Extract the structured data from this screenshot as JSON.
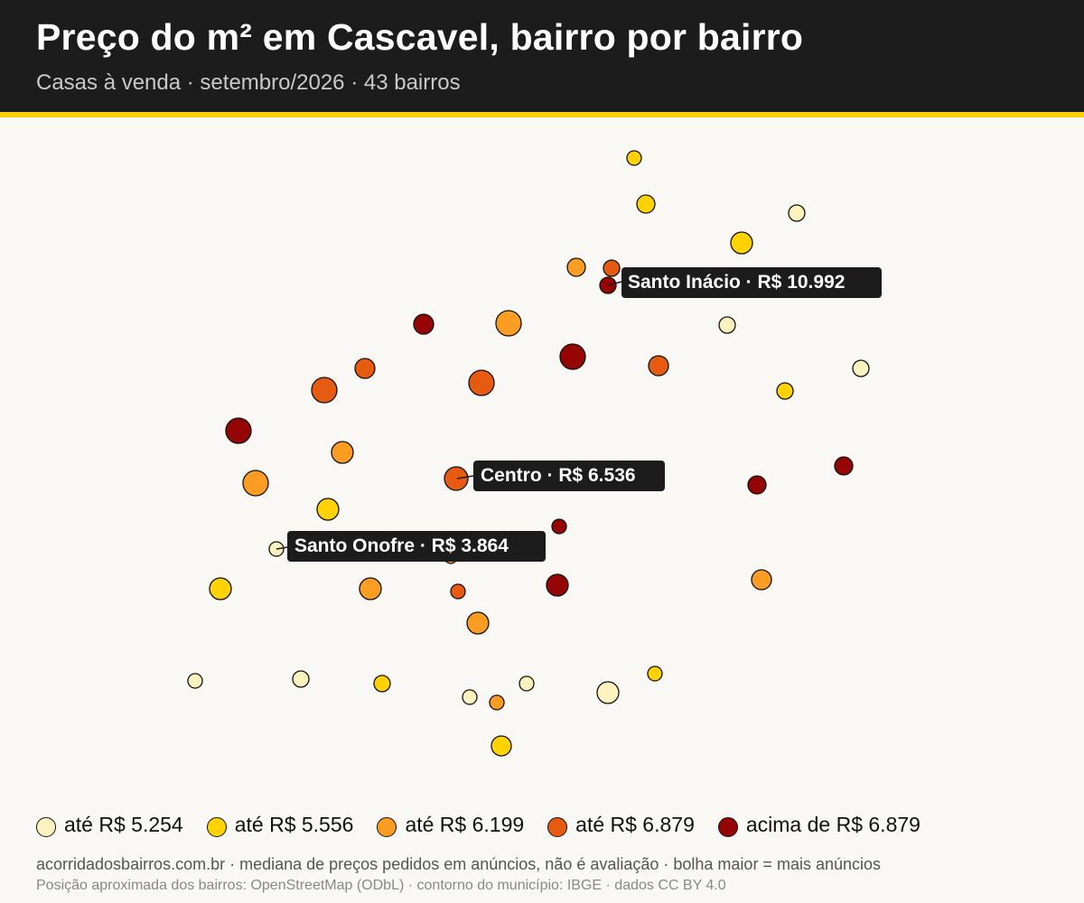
{
  "header": {
    "title": "Preço do m² em Cascavel, bairro por bairro",
    "subtitle": "Casas à venda · setembro/2026 · 43 bairros"
  },
  "colors": {
    "class1": "#fbf2c0",
    "class2": "#ffd200",
    "class3": "#fb9d22",
    "class4": "#e65a12",
    "class5": "#950505"
  },
  "legend": [
    {
      "label": "até R$ 5.254",
      "class": 1
    },
    {
      "label": "até R$ 5.556",
      "class": 2
    },
    {
      "label": "até R$ 6.199",
      "class": 3
    },
    {
      "label": "até R$ 6.879",
      "class": 4
    },
    {
      "label": "acima de R$ 6.879",
      "class": 5
    }
  ],
  "callouts": [
    {
      "text": "Santo Inácio · R$ 10.992"
    },
    {
      "text": "Centro · R$ 6.536"
    },
    {
      "text": "Santo Onofre · R$ 3.864"
    }
  ],
  "footer": {
    "line1": "acorridadosbairros.com.br · mediana de preços pedidos em anúncios, não é avaliação · bolha maior = mais anúncios",
    "line2": "Posição aproximada dos bairros: OpenStreetMap (ODbL) · contorno do município: IBGE · dados CC BY 4.0"
  }
}
